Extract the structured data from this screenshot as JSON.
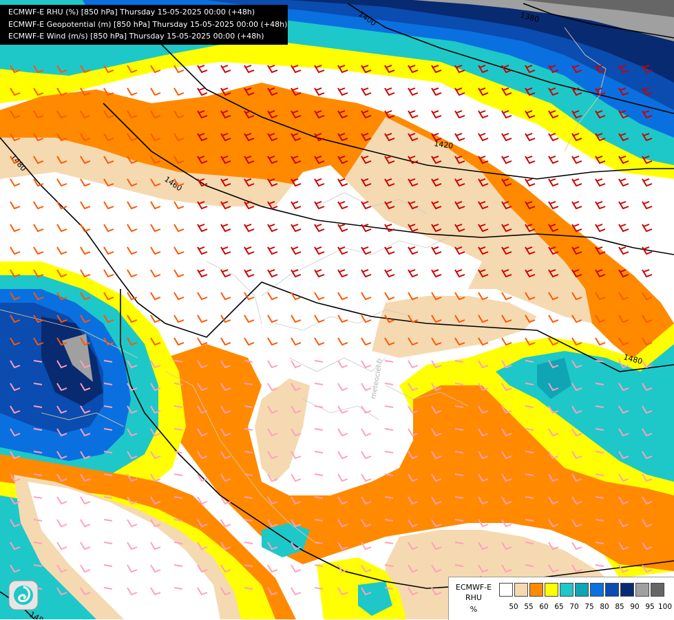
{
  "title_lines": [
    "ECMWF-E RHU (%) [850 hPa] Thursday 15-05-2025 00:00 (+48h)",
    "ECMWF-E Geopotential (m) [850 hPa] Thursday 15-05-2025 00:00 (+48h)",
    "ECMWF-E Wind (m/s) [850 hPa] Thursday 15-05-2025 00:00 (+48h)"
  ],
  "legend": {
    "model": "ECMWF-E",
    "variable": "RHU",
    "unit": "%",
    "ticks": [
      "50",
      "55",
      "60",
      "65",
      "70",
      "75",
      "80",
      "85",
      "90",
      "95",
      "100"
    ],
    "colors": [
      "#ffffff",
      "#f5d9b0",
      "#ff8a00",
      "#ffff00",
      "#1ec8c8",
      "#10a5b5",
      "#0a70e0",
      "#0a4cb0",
      "#082a70",
      "#a0a0a0",
      "#666666"
    ]
  },
  "contour_labels": [
    "1400",
    "1380",
    "1420",
    "1480",
    "1460",
    "1480",
    "1480",
    "1480"
  ],
  "watermark": "meteociel.fr",
  "icons": {
    "logo": "swirl-logo-icon"
  }
}
